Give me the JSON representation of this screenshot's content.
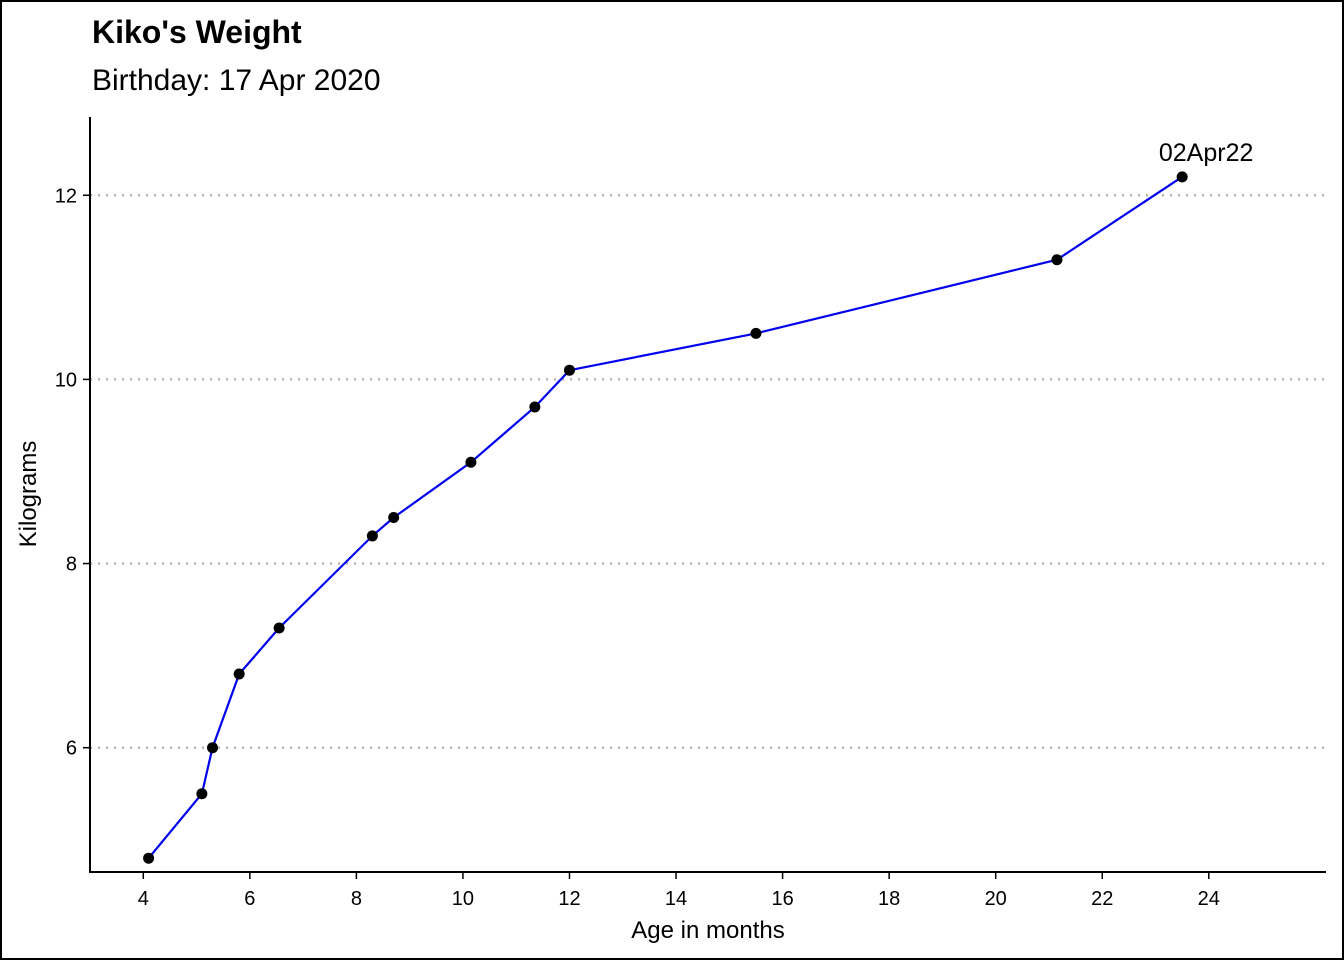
{
  "chart_data": {
    "type": "line",
    "title": "Kiko's Weight",
    "subtitle": "Birthday: 17 Apr 2020",
    "xlabel": "Age in months",
    "ylabel": "Kilograms",
    "xlim": [
      3,
      26.2
    ],
    "ylim": [
      4.65,
      12.85
    ],
    "xticks": [
      4,
      6,
      8,
      10,
      12,
      14,
      16,
      18,
      20,
      22,
      24
    ],
    "yticks": [
      6,
      8,
      10,
      12
    ],
    "grid": "horizontal dotted at y ticks",
    "line_color": "#0000ee",
    "point_color": "#000000",
    "series": [
      {
        "x": [
          4.1,
          5.1,
          5.3,
          5.8,
          6.55,
          8.3,
          8.7,
          10.15,
          11.35,
          12.0,
          15.5,
          21.15,
          23.5
        ],
        "y": [
          4.8,
          5.5,
          6.0,
          6.8,
          7.3,
          8.3,
          8.5,
          9.1,
          9.7,
          10.1,
          10.5,
          11.3,
          12.2
        ]
      }
    ],
    "annotations": [
      {
        "text": "02Apr22",
        "x": 23.5,
        "y": 12.2
      }
    ]
  }
}
